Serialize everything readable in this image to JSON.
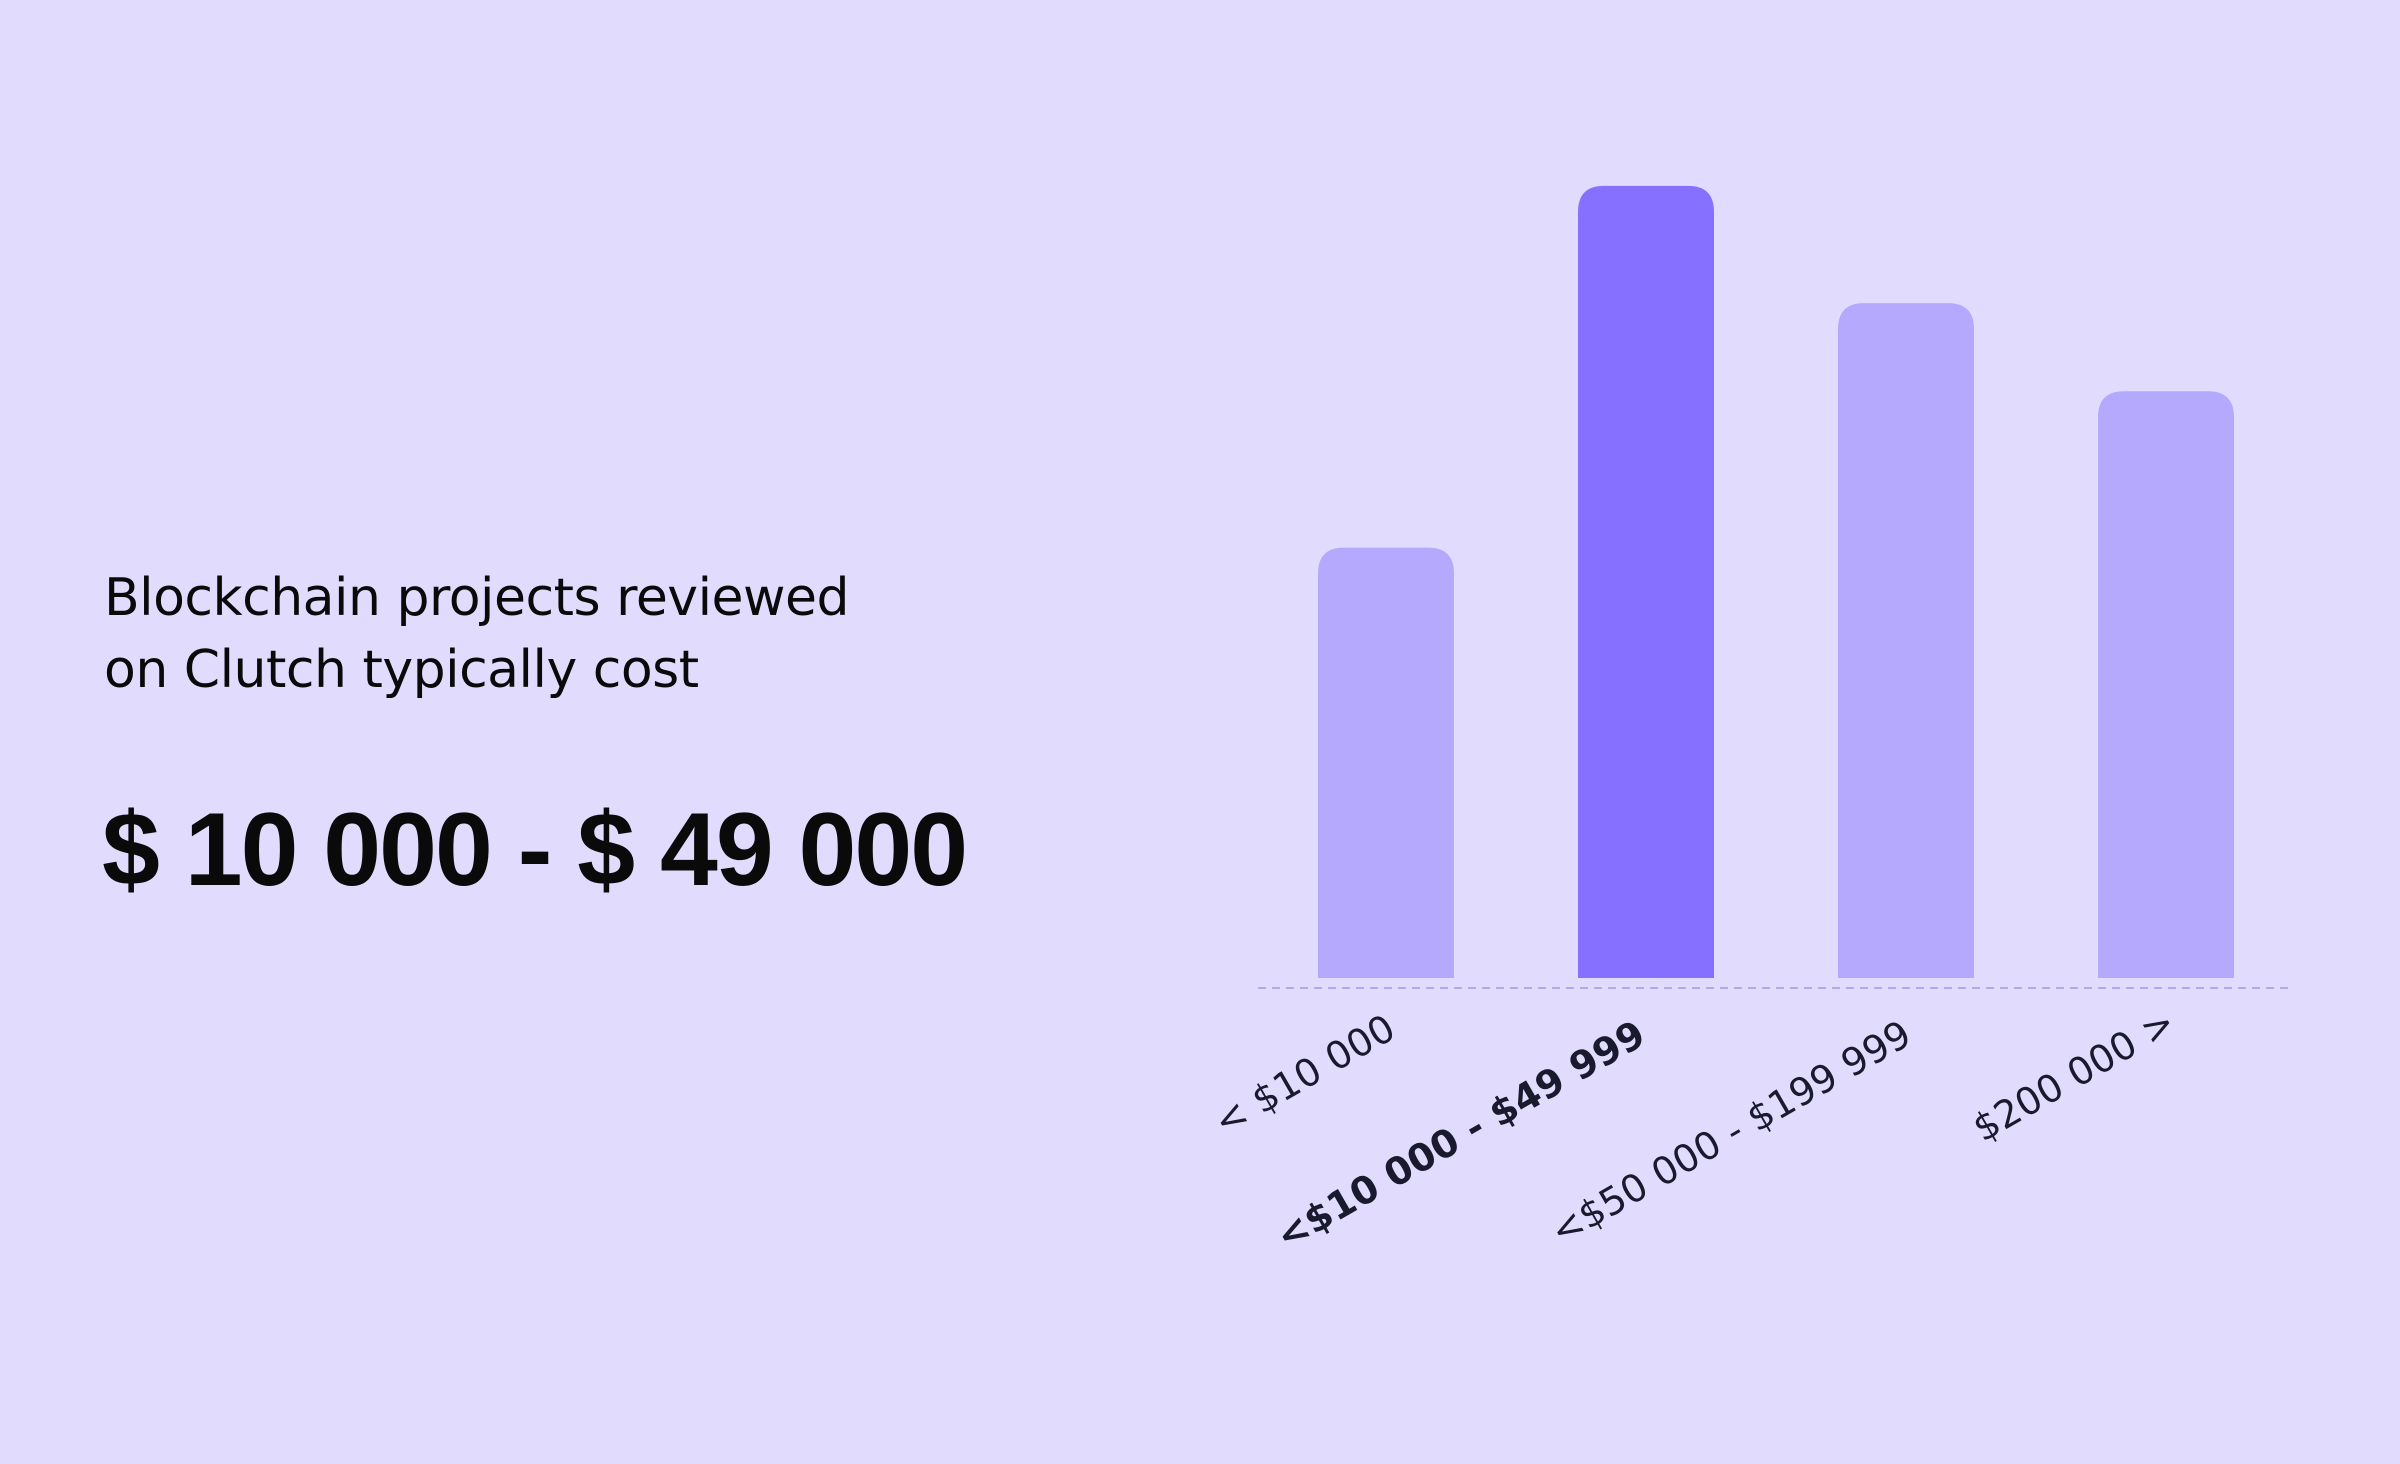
{
  "text": {
    "subtitle_line1": "Blockchain projects reviewed",
    "subtitle_line2": "on Clutch typically cost",
    "headline": "$ 10 000 - $ 49 000"
  },
  "colors": {
    "background": "#e1dcfe",
    "bar": "#b5a9fe",
    "bar_highlight": "#8570ff",
    "baseline": "#b3a8e8",
    "text": "#0a0a0a"
  },
  "chart_data": {
    "type": "bar",
    "categories": [
      "< $10 000",
      "<$10 000 - $49 999",
      "<$50 000 - $199 999",
      "$200 000 >"
    ],
    "values": [
      44,
      81,
      69,
      60
    ],
    "highlight_index": 1,
    "title": "",
    "xlabel": "",
    "ylabel": "",
    "ylim": [
      0,
      100
    ],
    "grid": false,
    "legend": "none",
    "baseline": "dashed"
  }
}
